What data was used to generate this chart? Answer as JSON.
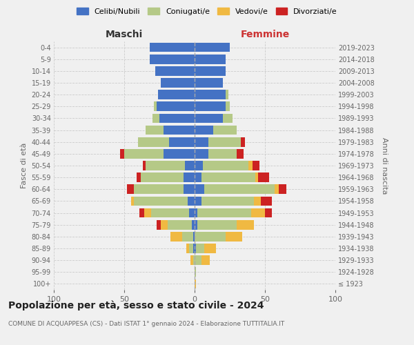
{
  "age_groups": [
    "100+",
    "95-99",
    "90-94",
    "85-89",
    "80-84",
    "75-79",
    "70-74",
    "65-69",
    "60-64",
    "55-59",
    "50-54",
    "45-49",
    "40-44",
    "35-39",
    "30-34",
    "25-29",
    "20-24",
    "15-19",
    "10-14",
    "5-9",
    "0-4"
  ],
  "birth_years": [
    "≤ 1923",
    "1924-1928",
    "1929-1933",
    "1934-1938",
    "1939-1943",
    "1944-1948",
    "1949-1953",
    "1954-1958",
    "1959-1963",
    "1964-1968",
    "1969-1973",
    "1974-1978",
    "1979-1983",
    "1984-1988",
    "1989-1993",
    "1994-1998",
    "1999-2003",
    "2004-2008",
    "2009-2013",
    "2014-2018",
    "2019-2023"
  ],
  "colors": {
    "celibi": "#4472c4",
    "coniugati": "#b5c987",
    "vedovi": "#f0b942",
    "divorziati": "#cc2222"
  },
  "maschi": {
    "celibi": [
      0,
      0,
      0,
      1,
      1,
      2,
      4,
      5,
      8,
      8,
      7,
      22,
      18,
      22,
      25,
      27,
      26,
      24,
      28,
      32,
      32
    ],
    "coniugati": [
      0,
      0,
      1,
      3,
      8,
      17,
      27,
      38,
      35,
      30,
      28,
      28,
      22,
      13,
      5,
      2,
      0,
      0,
      0,
      0,
      0
    ],
    "vedovi": [
      0,
      0,
      2,
      2,
      8,
      5,
      5,
      2,
      0,
      0,
      0,
      0,
      0,
      0,
      0,
      0,
      0,
      0,
      0,
      0,
      0
    ],
    "divorziati": [
      0,
      0,
      0,
      0,
      0,
      3,
      3,
      0,
      5,
      3,
      2,
      3,
      0,
      0,
      0,
      0,
      0,
      0,
      0,
      0,
      0
    ]
  },
  "femmine": {
    "celibi": [
      0,
      0,
      0,
      1,
      0,
      2,
      2,
      5,
      7,
      5,
      6,
      10,
      10,
      13,
      20,
      22,
      22,
      20,
      22,
      22,
      25
    ],
    "coniugati": [
      0,
      1,
      5,
      6,
      22,
      28,
      38,
      37,
      50,
      38,
      32,
      20,
      23,
      17,
      7,
      3,
      2,
      0,
      0,
      0,
      0
    ],
    "vedovi": [
      1,
      0,
      6,
      8,
      12,
      12,
      10,
      5,
      3,
      2,
      3,
      0,
      0,
      0,
      0,
      0,
      0,
      0,
      0,
      0,
      0
    ],
    "divorziati": [
      0,
      0,
      0,
      0,
      0,
      0,
      5,
      8,
      5,
      8,
      5,
      5,
      3,
      0,
      0,
      0,
      0,
      0,
      0,
      0,
      0
    ]
  },
  "xlim": 100,
  "title": "Popolazione per età, sesso e stato civile - 2024",
  "subtitle": "COMUNE DI ACQUAPPESA (CS) - Dati ISTAT 1° gennaio 2024 - Elaborazione TUTTITALIA.IT",
  "ylabel_left": "Fasce di età",
  "ylabel_right": "Anni di nascita",
  "xlabel_left": "Maschi",
  "xlabel_right": "Femmine",
  "legend_labels": [
    "Celibi/Nubili",
    "Coniugati/e",
    "Vedovi/e",
    "Divorziati/e"
  ],
  "bg_color": "#f0f0f0"
}
